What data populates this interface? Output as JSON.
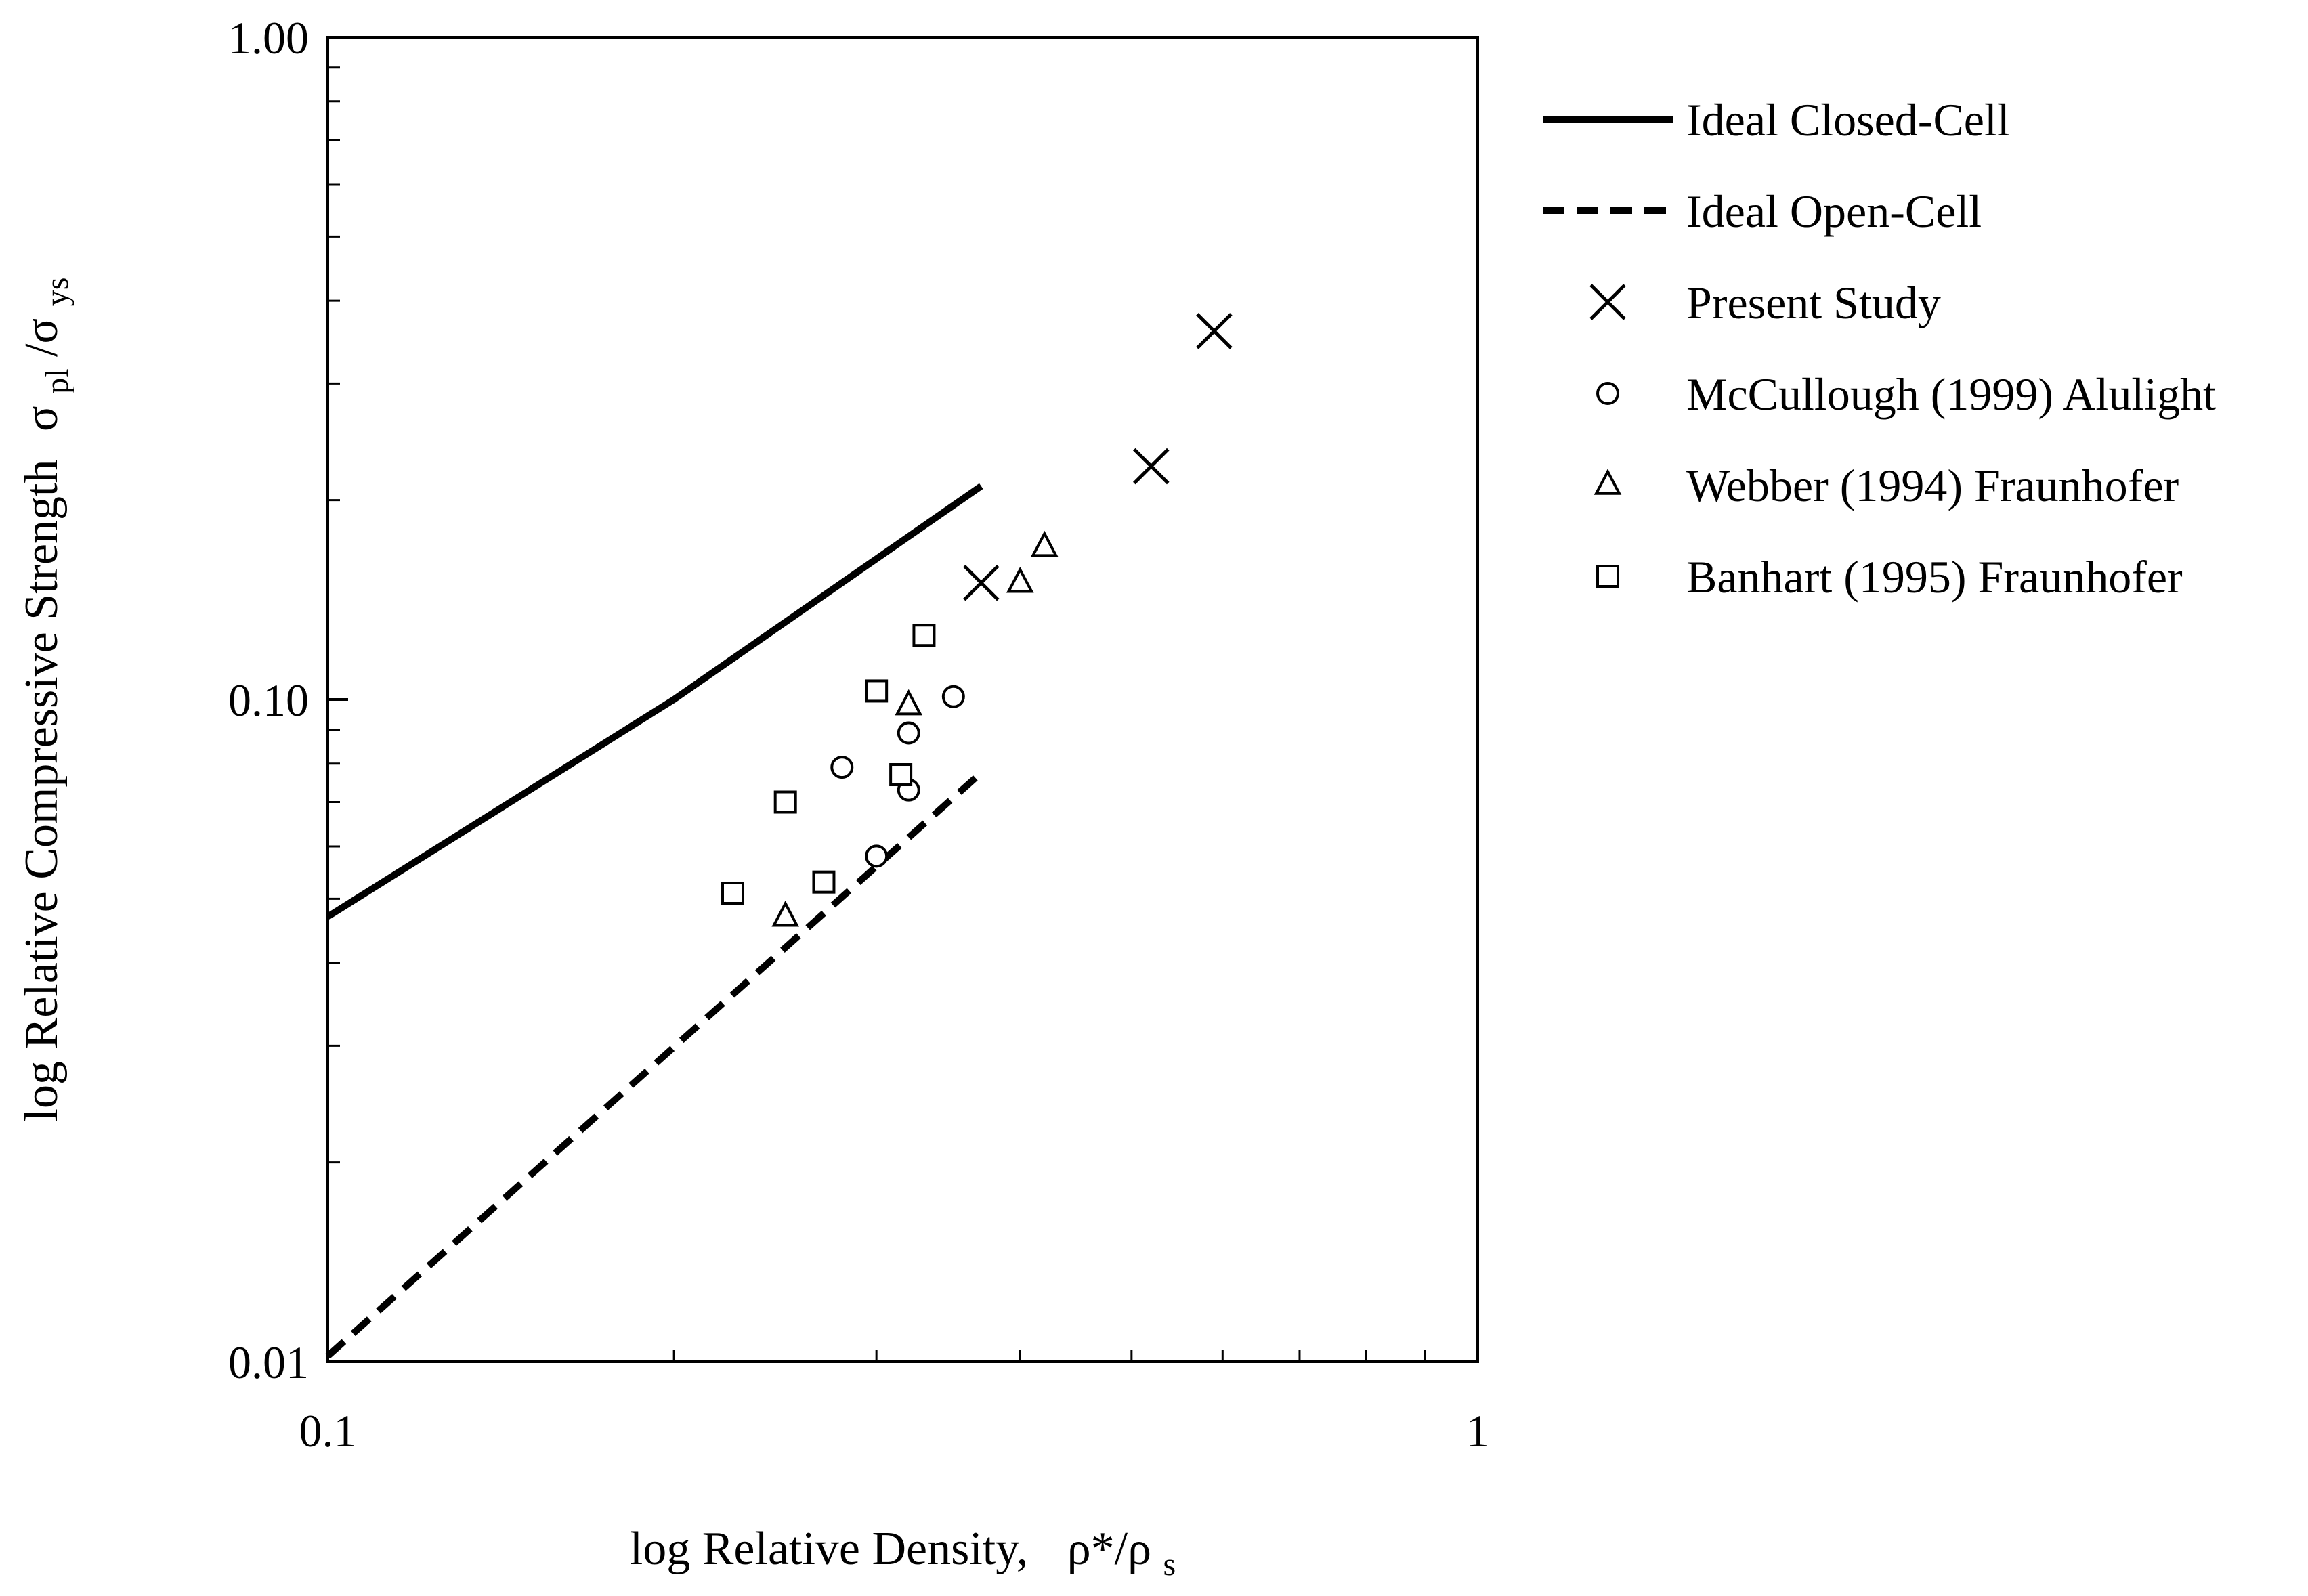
{
  "chart_data": {
    "type": "scatter",
    "xscale": "log",
    "yscale": "log",
    "xlim": [
      0.1,
      1
    ],
    "ylim": [
      0.01,
      1.0
    ],
    "x_ticks": [
      {
        "value": 0.1,
        "label": "0.1"
      },
      {
        "value": 1,
        "label": "1"
      }
    ],
    "y_ticks": [
      {
        "value": 0.01,
        "label": "0.01"
      },
      {
        "value": 0.1,
        "label": "0.10"
      },
      {
        "value": 1.0,
        "label": "1.00"
      }
    ],
    "xlabel": {
      "prefix": "log Relative Density,",
      "symbol": "ρ*/ρ",
      "sub": "s"
    },
    "ylabel": {
      "prefix": "log Relative Compressive Strength",
      "sym1": "σ",
      "sub1": "pl",
      "sep": "/σ",
      "sub2": "ys"
    },
    "grid": false,
    "legend_position": "right",
    "series": [
      {
        "name": "Ideal Closed-Cell",
        "kind": "line",
        "style": "solid",
        "color": "#000000",
        "x": [
          0.1,
          0.2,
          0.37
        ],
        "y": [
          0.047,
          0.1,
          0.21
        ]
      },
      {
        "name": "Ideal Open-Cell",
        "kind": "line",
        "style": "dashed",
        "color": "#000000",
        "x": [
          0.1,
          0.37
        ],
        "y": [
          0.0102,
          0.0775
        ]
      },
      {
        "name": "Present Study",
        "kind": "marker",
        "marker": "x",
        "color": "#000000",
        "x": [
          0.37,
          0.52,
          0.59
        ],
        "y": [
          0.15,
          0.225,
          0.36
        ]
      },
      {
        "name": "McCullough (1999) Alulight",
        "kind": "marker",
        "marker": "circle",
        "color": "#000000",
        "x": [
          0.28,
          0.3,
          0.32,
          0.32,
          0.35
        ],
        "y": [
          0.079,
          0.058,
          0.073,
          0.089,
          0.101
        ]
      },
      {
        "name": "Webber (1994) Fraunhofer",
        "kind": "marker",
        "marker": "triangle",
        "color": "#000000",
        "x": [
          0.25,
          0.32,
          0.4,
          0.42
        ],
        "y": [
          0.047,
          0.098,
          0.15,
          0.17
        ]
      },
      {
        "name": "Banhart (1995) Fraunhofer",
        "kind": "marker",
        "marker": "square",
        "color": "#000000",
        "x": [
          0.225,
          0.25,
          0.27,
          0.3,
          0.315,
          0.33
        ],
        "y": [
          0.051,
          0.07,
          0.053,
          0.103,
          0.077,
          0.125
        ]
      }
    ]
  }
}
